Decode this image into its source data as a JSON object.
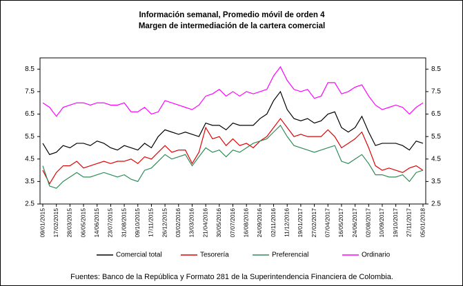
{
  "chart_data": {
    "type": "line",
    "title": "Información semanal, Promedio móvil de orden 4",
    "subtitle": "Margen de intermediación de la cartera comercial",
    "source": "Fuentes: Banco de la República y Formato 281 de la Superintendencia Financiera de Colombia.",
    "categories": [
      "09/01/2015",
      null,
      "17/02/2015",
      null,
      "28/03/2015",
      null,
      "06/05/2015",
      null,
      "14/06/2015",
      null,
      "23/07/2015",
      null,
      "31/08/2015",
      null,
      "09/10/2015",
      null,
      "17/11/2015",
      null,
      "26/12/2015",
      null,
      "03/02/2016",
      null,
      "13/03/2016",
      null,
      "21/04/2016",
      null,
      "30/05/2016",
      null,
      "07/07/2016",
      null,
      "16/08/2016",
      null,
      "24/09/2016",
      null,
      "02/11/2016",
      null,
      "11/12/2016",
      null,
      "19/01/2017",
      null,
      "27/02/2017",
      null,
      "07/04/2017",
      null,
      "16/05/2017",
      null,
      "24/06/2017",
      null,
      "02/08/2017",
      null,
      "10/09/2017",
      null,
      "19/10/2017",
      null,
      "27/11/2017",
      null,
      "05/01/2018"
    ],
    "series": [
      {
        "name": "Comercial total",
        "color": "#000000",
        "values": [
          5.2,
          4.7,
          4.8,
          5.1,
          5.0,
          5.2,
          5.2,
          5.1,
          5.3,
          5.2,
          5.0,
          4.9,
          5.1,
          5.0,
          4.9,
          5.2,
          5.0,
          5.5,
          5.8,
          5.7,
          5.6,
          5.7,
          5.6,
          5.5,
          6.1,
          6.0,
          6.0,
          5.8,
          6.1,
          6.0,
          6.0,
          6.0,
          6.3,
          6.5,
          7.1,
          7.5,
          6.7,
          6.3,
          6.2,
          6.3,
          6.1,
          6.2,
          6.5,
          6.6,
          5.9,
          5.7,
          5.9,
          6.4,
          5.7,
          5.1,
          5.2,
          5.2,
          5.2,
          5.1,
          4.9,
          5.3,
          5.2
        ]
      },
      {
        "name": "Tesorería",
        "color": "#e00000",
        "values": [
          4.0,
          3.4,
          3.9,
          4.2,
          4.2,
          4.4,
          4.1,
          4.2,
          4.3,
          4.4,
          4.3,
          4.4,
          4.4,
          4.5,
          4.3,
          4.6,
          4.5,
          4.8,
          5.1,
          4.8,
          4.9,
          4.9,
          4.3,
          4.8,
          5.9,
          5.4,
          5.5,
          5.1,
          5.4,
          5.1,
          5.2,
          5.0,
          5.3,
          5.5,
          5.9,
          6.3,
          5.9,
          5.5,
          5.6,
          5.5,
          5.5,
          5.5,
          5.8,
          5.5,
          5.0,
          5.2,
          5.4,
          5.7,
          5.0,
          4.2,
          4.0,
          4.1,
          4.0,
          3.9,
          4.1,
          4.2,
          4.0
        ]
      },
      {
        "name": "Preferencial",
        "color": "#2e8b57",
        "values": [
          4.2,
          3.3,
          3.2,
          3.5,
          3.7,
          3.9,
          3.7,
          3.7,
          3.8,
          3.9,
          3.8,
          3.7,
          3.8,
          3.6,
          3.5,
          4.0,
          4.1,
          4.4,
          4.7,
          4.5,
          4.6,
          4.7,
          4.2,
          4.6,
          5.0,
          4.8,
          4.9,
          4.6,
          4.9,
          4.8,
          5.0,
          5.2,
          5.3,
          5.4,
          5.7,
          6.0,
          5.5,
          5.1,
          5.0,
          4.9,
          4.8,
          4.9,
          5.0,
          5.1,
          4.4,
          4.3,
          4.5,
          4.7,
          4.3,
          3.8,
          3.8,
          3.7,
          3.7,
          3.8,
          3.5,
          3.9,
          4.0
        ]
      },
      {
        "name": "Ordinario",
        "color": "#ff00ff",
        "values": [
          7.0,
          6.8,
          6.4,
          6.8,
          6.9,
          7.0,
          7.0,
          6.9,
          7.0,
          7.0,
          6.9,
          6.9,
          7.0,
          6.6,
          6.6,
          6.8,
          6.5,
          6.6,
          7.1,
          7.0,
          6.9,
          6.8,
          6.7,
          6.9,
          7.3,
          7.4,
          7.6,
          7.3,
          7.5,
          7.3,
          7.5,
          7.4,
          7.5,
          7.6,
          8.2,
          8.6,
          8.0,
          7.6,
          7.5,
          7.6,
          7.2,
          7.3,
          7.9,
          7.9,
          7.4,
          7.5,
          7.7,
          7.8,
          7.3,
          6.9,
          6.7,
          6.8,
          6.9,
          6.8,
          6.5,
          6.8,
          7.0
        ]
      }
    ],
    "ylim": [
      2.5,
      9.0
    ],
    "yticks": [
      2.5,
      3.5,
      4.5,
      5.5,
      6.5,
      7.5,
      8.5
    ],
    "y2lim": [
      2.5,
      9.0
    ],
    "y2ticks": [
      2.5,
      3.5,
      4.5,
      5.5,
      6.5,
      7.5,
      8.5
    ],
    "grid": false,
    "legend": "bottom"
  }
}
